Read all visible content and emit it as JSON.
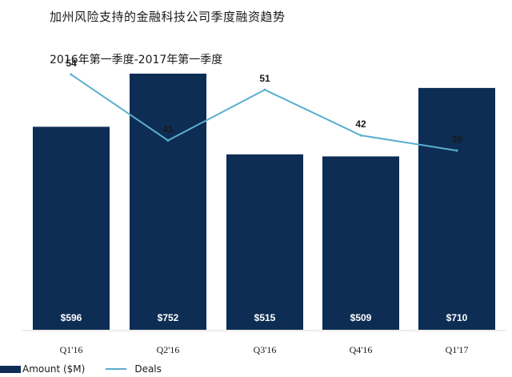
{
  "title": "加州风险支持的金融科技公司季度融资趋势",
  "subtitle": "2016年第一季度-2017年第一季度",
  "colors": {
    "bar": "#0d2d54",
    "line": "#5aafce",
    "bar_label": "#ffffff",
    "text": "#1a1a1a"
  },
  "chart_data": {
    "type": "bar",
    "categories": [
      "Q1'16",
      "Q2'16",
      "Q3'16",
      "Q4'16",
      "Q1'17"
    ],
    "series": [
      {
        "name": "Amount ($M)",
        "type": "bar",
        "values": [
          596,
          752,
          515,
          509,
          710
        ],
        "labels": [
          "$596",
          "$752",
          "$515",
          "$509",
          "$710"
        ]
      },
      {
        "name": "Deals",
        "type": "line",
        "values": [
          54,
          41,
          51,
          42,
          39
        ],
        "labels": [
          "54",
          "41",
          "51",
          "42",
          "39"
        ]
      }
    ],
    "legend": "bottom-left",
    "grid": false
  }
}
